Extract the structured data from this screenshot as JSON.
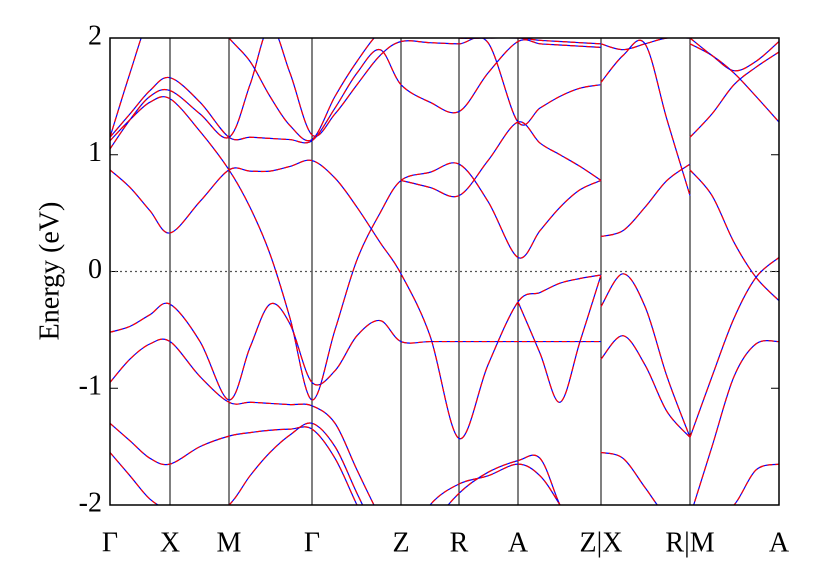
{
  "chart_data": {
    "type": "band",
    "ylabel": "Energy (eV)",
    "ylim": [
      -2,
      2
    ],
    "yticks": [
      -2,
      -1,
      0,
      1,
      2
    ],
    "xlim": [
      0,
      669
    ],
    "xticks": [
      {
        "value": 0,
        "label": "Γ"
      },
      {
        "value": 60,
        "label": "X"
      },
      {
        "value": 119,
        "label": "M"
      },
      {
        "value": 202,
        "label": "Γ"
      },
      {
        "value": 291,
        "label": "Z"
      },
      {
        "value": 349,
        "label": "R"
      },
      {
        "value": 408,
        "label": "A"
      },
      {
        "value": 491,
        "label": "Z|X"
      },
      {
        "value": 580,
        "label": "R|M"
      },
      {
        "value": 669,
        "label": "A"
      }
    ],
    "fermi_level": 0,
    "colors": [
      "#0000ff",
      "#ff0000"
    ],
    "segments": [
      {
        "x": [
          0,
          20,
          40,
          60,
          90,
          119,
          140,
          160,
          180,
          202,
          225,
          247,
          270,
          291,
          320,
          349,
          378,
          408,
          430,
          450,
          470,
          491
        ],
        "bands": [
          [
            0.87,
            0.72,
            0.52,
            0.33,
            0.6,
            0.87,
            0.86,
            0.86,
            0.9,
            0.95,
            0.8,
            0.55,
            0.25,
            -0.02,
            -0.55,
            -1.43,
            -0.8,
            -0.26,
            -0.18,
            -0.1,
            -0.06,
            -0.03
          ],
          [
            1.12,
            1.3,
            1.45,
            1.48,
            1.2,
            0.87,
            0.55,
            0.15,
            -0.4,
            -1.1,
            -0.5,
            0.1,
            0.5,
            0.78,
            0.85,
            0.92,
            0.6,
            0.12,
            0.35,
            0.55,
            0.7,
            0.78
          ],
          [
            1.15,
            1.35,
            1.55,
            1.66,
            1.45,
            1.15,
            1.15,
            1.14,
            1.13,
            1.12,
            1.4,
            1.7,
            1.9,
            1.6,
            1.45,
            1.37,
            1.7,
            1.97,
            1.95,
            1.94,
            1.93,
            1.92
          ],
          [
            1.05,
            1.3,
            1.5,
            1.55,
            1.35,
            1.15,
            1.6,
            2.1,
            1.7,
            1.17,
            1.35,
            1.6,
            1.85,
            1.97,
            1.96,
            1.95,
            1.96,
            1.28,
            1.4,
            1.5,
            1.57,
            1.6
          ],
          [
            -0.52,
            -0.47,
            -0.37,
            -0.28,
            -0.6,
            -1.1,
            -0.65,
            -0.28,
            -0.45,
            -0.95,
            -0.85,
            -0.55,
            -0.42,
            -0.6,
            -0.6,
            -0.6,
            -0.6,
            -0.6,
            -0.6,
            -0.6,
            -0.6,
            -0.6
          ],
          [
            -0.95,
            -0.75,
            -0.62,
            -0.6,
            -0.9,
            -1.12,
            -1.12,
            -1.13,
            -1.14,
            -1.15,
            -1.3,
            -1.7,
            -2.1,
            -2.4,
            -2.0,
            -1.82,
            -1.75,
            -1.65,
            -1.75,
            -2.0,
            -2.3,
            -2.4
          ],
          [
            -1.3,
            -1.45,
            -1.6,
            -1.65,
            -1.5,
            -1.41,
            -1.38,
            -1.36,
            -1.35,
            -1.35,
            -1.6,
            -2.0,
            -2.4,
            -2.6,
            -2.2,
            -1.9,
            -1.72,
            -1.62,
            -1.6,
            -2.0,
            -2.3,
            -2.5
          ],
          [
            -1.55,
            -1.75,
            -1.95,
            -2.05,
            -2.15,
            -2.0,
            -1.75,
            -1.55,
            -1.4,
            -1.3,
            -1.5,
            -1.9,
            -2.3,
            -2.6,
            -2.5,
            -2.4,
            -2.3,
            -2.2,
            -2.3,
            -2.4,
            -2.5,
            -2.6
          ],
          [
            1.15,
            1.7,
            2.2,
            2.4,
            2.3,
            2.0,
            1.8,
            1.5,
            1.25,
            1.13,
            1.5,
            1.8,
            2.05,
            2.1,
            2.05,
            2.0,
            2.0,
            2.0,
            1.98,
            1.97,
            1.96,
            1.95
          ],
          [
            null,
            null,
            null,
            null,
            null,
            null,
            null,
            null,
            null,
            null,
            null,
            null,
            null,
            0.78,
            0.72,
            0.65,
            0.95,
            1.28,
            1.1,
            1.0,
            0.9,
            0.78
          ],
          [
            null,
            null,
            null,
            null,
            null,
            null,
            null,
            null,
            null,
            null,
            null,
            null,
            null,
            null,
            null,
            null,
            null,
            -0.26,
            -0.7,
            -1.12,
            -0.6,
            -0.03
          ]
        ]
      },
      {
        "x": [
          491,
          513,
          535,
          557,
          580
        ],
        "bands": [
          [
            -0.3,
            -0.02,
            -0.3,
            -0.9,
            -1.42
          ],
          [
            -0.75,
            -0.55,
            -0.8,
            -1.2,
            -1.42
          ],
          [
            1.62,
            1.85,
            1.95,
            1.3,
            0.65
          ],
          [
            1.95,
            1.9,
            1.95,
            2.0,
            2.0
          ],
          [
            0.3,
            0.35,
            0.55,
            0.78,
            0.92
          ],
          [
            -1.55,
            -1.6,
            -1.85,
            -2.1,
            -2.2
          ]
        ]
      },
      {
        "x": [
          580,
          602,
          624,
          646,
          669
        ],
        "bands": [
          [
            0.87,
            0.65,
            0.25,
            -0.05,
            -0.25
          ],
          [
            -1.42,
            -0.9,
            -0.4,
            -0.05,
            0.12
          ],
          [
            1.15,
            1.35,
            1.6,
            1.75,
            1.88
          ],
          [
            2.0,
            1.85,
            1.72,
            1.8,
            1.97
          ],
          [
            1.95,
            1.85,
            1.7,
            1.5,
            1.28
          ],
          [
            -2.1,
            -1.5,
            -0.9,
            -0.62,
            -0.6
          ],
          [
            -2.2,
            -2.1,
            -2.0,
            -1.7,
            -1.65
          ]
        ]
      }
    ]
  }
}
